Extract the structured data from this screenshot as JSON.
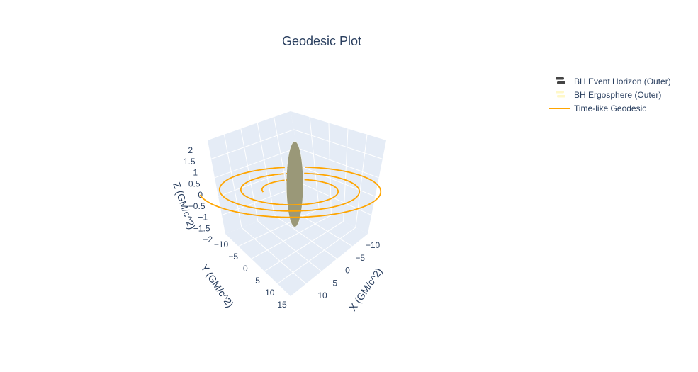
{
  "chart_data": {
    "type": "scatter3d",
    "title": "Geodesic Plot",
    "axes": {
      "x": {
        "label": "X (GM/c^2)",
        "ticks": [
          "−10",
          "−5",
          "0",
          "5",
          "10"
        ],
        "range": [
          -11,
          12
        ]
      },
      "y": {
        "label": "Y (GM/c^2)",
        "ticks": [
          "−10",
          "−5",
          "0",
          "5",
          "10",
          "15"
        ],
        "range": [
          -12,
          16
        ]
      },
      "z": {
        "label": "Z (GM/c^2)",
        "ticks": [
          "−2",
          "−1.5",
          "−1",
          "−0.5",
          "0",
          "0.5",
          "1",
          "1.5",
          "2"
        ],
        "range": [
          -2.2,
          2.2
        ]
      }
    },
    "legend": {
      "placement": "top-right",
      "entries": [
        {
          "name": "BH Event Horizon (Outer)",
          "kind": "surface",
          "color": "#444444"
        },
        {
          "name": "BH Ergosphere (Outer)",
          "kind": "surface",
          "color": "#fffce0"
        },
        {
          "name": "Time-like Geodesic",
          "kind": "line",
          "color": "#ffa500"
        }
      ]
    },
    "series": [
      {
        "name": "BH Event Horizon (Outer)",
        "type": "ellipsoid",
        "center": [
          0,
          0,
          0
        ],
        "radius_xy": 1.2,
        "radius_z": 2.0,
        "color": "#8c8c7a"
      },
      {
        "name": "BH Ergosphere (Outer)",
        "type": "ellipsoid",
        "center": [
          0,
          0,
          0
        ],
        "radius_xy": 1.25,
        "radius_z": 2.0,
        "color": "#fffce0"
      },
      {
        "name": "Time-like Geodesic",
        "type": "spiral",
        "r_start": 3.5,
        "r_end": 10.5,
        "turns": 3,
        "z": 0,
        "color": "#ffa500"
      }
    ]
  }
}
